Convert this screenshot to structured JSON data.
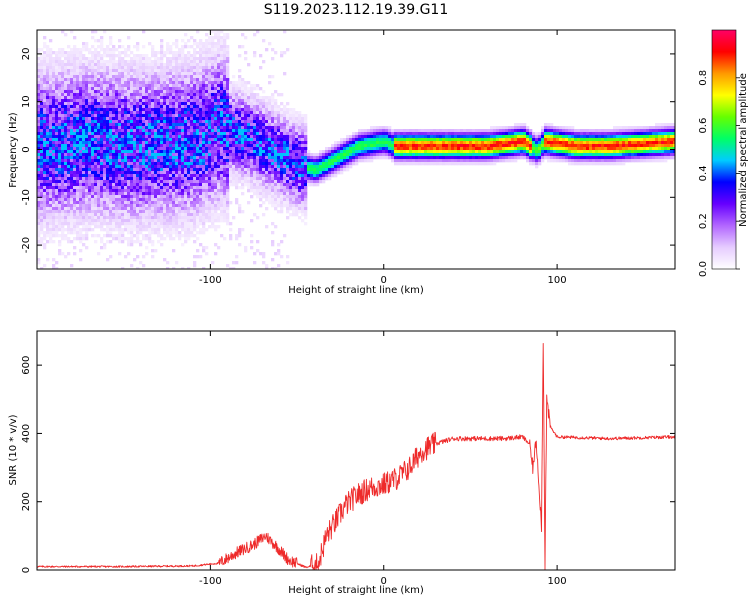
{
  "title": "S119.2023.112.19.39.G11",
  "chart_data": [
    {
      "type": "heatmap",
      "xlabel": "Height of straight line (km)",
      "ylabel": "Frequency (Hz)",
      "xlim": [
        -200,
        168
      ],
      "ylim": [
        -25,
        25
      ],
      "x_ticks": [
        -100,
        0,
        100
      ],
      "y_ticks": [
        -20,
        -10,
        0,
        10,
        20
      ],
      "colorbar": {
        "label": "Normalized spectral amplitude",
        "range": [
          0,
          1
        ],
        "ticks": [
          0.0,
          0.2,
          0.4,
          0.6,
          0.8
        ],
        "tick_labels": [
          "0.0",
          "0.2",
          "0.4",
          "0.6",
          "0.8"
        ],
        "colormap": [
          "#ffffff",
          "#e6ccff",
          "#b266ff",
          "#6600ff",
          "#0000ff",
          "#00ccff",
          "#00ff66",
          "#66ff00",
          "#ffff00",
          "#ff9900",
          "#ff0000",
          "#ff0066"
        ]
      },
      "ridge": [
        {
          "x": -200,
          "f": 1
        },
        {
          "x": -170,
          "f": 2
        },
        {
          "x": -140,
          "f": 1
        },
        {
          "x": -110,
          "f": 2
        },
        {
          "x": -95,
          "f": 5
        },
        {
          "x": -80,
          "f": 3
        },
        {
          "x": -65,
          "f": 0
        },
        {
          "x": -50,
          "f": -3
        },
        {
          "x": -40,
          "f": -4
        },
        {
          "x": -30,
          "f": -2
        },
        {
          "x": -15,
          "f": 1
        },
        {
          "x": 0,
          "f": 2
        },
        {
          "x": 5,
          "f": 1
        },
        {
          "x": 30,
          "f": 1
        },
        {
          "x": 60,
          "f": 1
        },
        {
          "x": 80,
          "f": 2
        },
        {
          "x": 88,
          "f": 0
        },
        {
          "x": 92,
          "f": 2
        },
        {
          "x": 110,
          "f": 1
        },
        {
          "x": 130,
          "f": 1
        },
        {
          "x": 168,
          "f": 2
        }
      ]
    },
    {
      "type": "line",
      "xlabel": "Height of straight line (km)",
      "ylabel": "SNR (10 * v/v)",
      "xlim": [
        -200,
        168
      ],
      "ylim": [
        0,
        700
      ],
      "x_ticks": [
        -100,
        0,
        100
      ],
      "y_ticks": [
        0,
        200,
        400,
        600
      ],
      "series": [
        {
          "color": "#ee2a2a",
          "points": [
            [
              -200,
              10
            ],
            [
              -150,
              10
            ],
            [
              -110,
              12
            ],
            [
              -95,
              20
            ],
            [
              -85,
              50
            ],
            [
              -75,
              75
            ],
            [
              -68,
              100
            ],
            [
              -62,
              70
            ],
            [
              -55,
              30
            ],
            [
              -45,
              8
            ],
            [
              -38,
              15
            ],
            [
              -33,
              100
            ],
            [
              -28,
              140
            ],
            [
              -22,
              190
            ],
            [
              -15,
              220
            ],
            [
              -8,
              240
            ],
            [
              0,
              250
            ],
            [
              8,
              270
            ],
            [
              15,
              300
            ],
            [
              22,
              350
            ],
            [
              30,
              370
            ],
            [
              40,
              385
            ],
            [
              55,
              385
            ],
            [
              70,
              385
            ],
            [
              80,
              390
            ],
            [
              84,
              370
            ],
            [
              86,
              300
            ],
            [
              88,
              380
            ],
            [
              91,
              130
            ],
            [
              92,
              680
            ],
            [
              93,
              20
            ],
            [
              94,
              500
            ],
            [
              96,
              420
            ],
            [
              100,
              390
            ],
            [
              130,
              385
            ],
            [
              168,
              390
            ]
          ]
        }
      ]
    }
  ]
}
